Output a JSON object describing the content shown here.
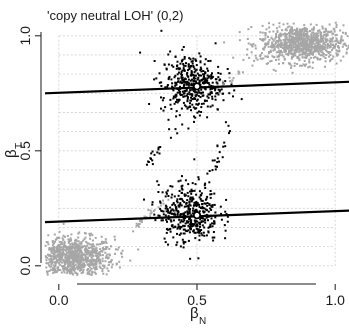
{
  "chart_data": {
    "type": "scatter",
    "title": "'copy neutral LOH' (0,2)",
    "xlabel": {
      "main": "β",
      "sub": "N"
    },
    "ylabel": {
      "main": "β",
      "sub": "T"
    },
    "xlim": [
      -0.05,
      1.05
    ],
    "ylim": [
      -0.04,
      1.06
    ],
    "xticks": [
      0.0,
      0.5,
      1.0
    ],
    "xtick_labels": [
      "0.0",
      "0.5",
      "1.0"
    ],
    "yticks": [
      0.0,
      0.5,
      1.0
    ],
    "ytick_labels": [
      "0.0",
      "0.5",
      "1.0"
    ],
    "grid": true,
    "grid_style": "dotted",
    "gridlines_x": [
      0.0,
      0.5,
      1.0
    ],
    "gridlines_y": [
      0.0,
      0.0833,
      0.1667,
      0.25,
      0.3333,
      0.4167,
      0.5,
      0.5833,
      0.6667,
      0.75,
      0.8333,
      0.9167,
      1.0
    ],
    "legend": "none",
    "colors": {
      "background_points": "#a6a6a6",
      "selected_points": "#000000",
      "lines": "#000000",
      "grid": "#d0d0d0",
      "center_marker": "#ffffff"
    },
    "clusters": [
      {
        "name": "",
        "color": "#a6a6a6",
        "cx": 0.05,
        "cy": 0.035,
        "sx": 0.075,
        "sy": 0.045,
        "n": 900
      },
      {
        "name": "",
        "color": "#a6a6a6",
        "cx": 0.88,
        "cy": 0.965,
        "sx": 0.075,
        "sy": 0.04,
        "n": 900
      },
      {
        "name": "",
        "color": "#000000",
        "cx": 0.48,
        "cy": 0.79,
        "sx": 0.055,
        "sy": 0.065,
        "n": 420
      },
      {
        "name": "",
        "color": "#000000",
        "cx": 0.47,
        "cy": 0.23,
        "sx": 0.055,
        "sy": 0.065,
        "n": 420
      }
    ],
    "bridge_points": [
      {
        "color": "#a6a6a6",
        "from": [
          0.26,
          0.16
        ],
        "to": [
          0.4,
          0.3
        ],
        "n": 25
      },
      {
        "color": "#000000",
        "from": [
          0.32,
          0.44
        ],
        "to": [
          0.42,
          0.6
        ],
        "n": 18
      },
      {
        "color": "#000000",
        "from": [
          0.54,
          0.36
        ],
        "to": [
          0.62,
          0.62
        ],
        "n": 22
      },
      {
        "color": "#a6a6a6",
        "from": [
          0.58,
          0.78
        ],
        "to": [
          0.74,
          0.9
        ],
        "n": 20
      }
    ],
    "center_markers": [
      {
        "x": 0.5,
        "y": 0.78
      },
      {
        "x": 0.5,
        "y": 0.22
      }
    ],
    "lines": [
      {
        "x": [
          -0.05,
          1.05
        ],
        "y": [
          0.75,
          0.8
        ]
      },
      {
        "x": [
          -0.05,
          1.05
        ],
        "y": [
          0.19,
          0.24
        ]
      }
    ]
  }
}
